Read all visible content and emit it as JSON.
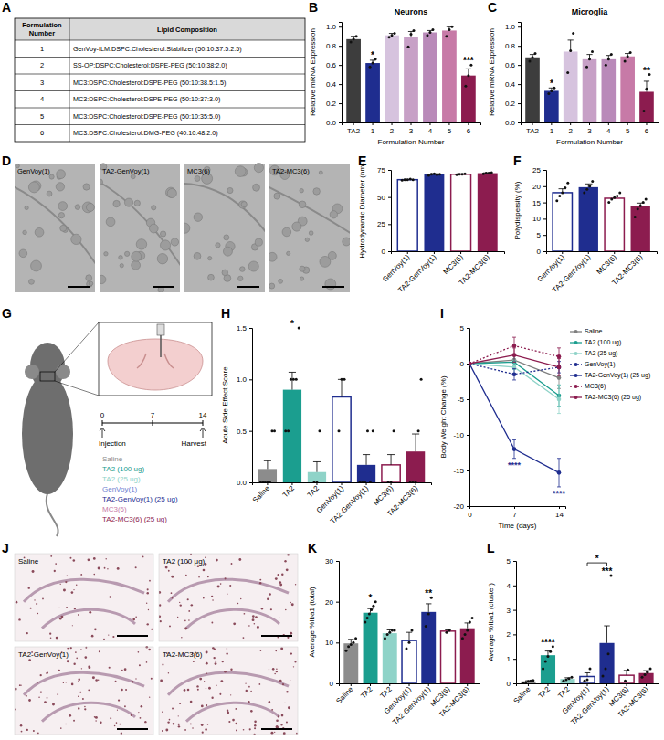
{
  "table": {
    "panel": "A",
    "header": [
      "Formulation Number",
      "Lipid Composition"
    ],
    "rows": [
      [
        "1",
        "GenVoy-ILM:DSPC:Cholesterol:Stabilizer (50:10:37.5:2.5)"
      ],
      [
        "2",
        "SS-OP:DSPC:Cholesterol:DSPE-PEG (50:10:38:2.0)"
      ],
      [
        "3",
        "MC3:DSPC:Cholesterol:DSPE-PEG (50:10:38.5:1.5)"
      ],
      [
        "4",
        "MC3:DSPC:Cholesterol:DSPE-PEG (50:10:37:3.0)"
      ],
      [
        "5",
        "MC3:DSPC:Cholesterol:DSPE-PEG (50:10:35:5.0)"
      ],
      [
        "6",
        "MC3:DSPC:Cholesterol:DMG-PEG (40:10:48:2.0)"
      ]
    ]
  },
  "micrographs": {
    "panel": "D",
    "labels": [
      "GenVoy(1)",
      "TA2-GenVoy(1)",
      "MC3(6)",
      "TA2-MC3(6)"
    ]
  },
  "diagram": {
    "panel": "G",
    "timeline": [
      0,
      7,
      14
    ],
    "events": [
      {
        "day": 0,
        "label": "Injection"
      },
      {
        "day": 14,
        "label": "Harvest"
      }
    ],
    "groups": [
      {
        "name": "Saline",
        "color": "#8c8c8c"
      },
      {
        "name": "TA2 (100 ug)",
        "color": "#1b9e8f"
      },
      {
        "name": "TA2 (25 ug)",
        "color": "#8fd3c8"
      },
      {
        "name": "GenVoy(1)",
        "color": "#7080d0"
      },
      {
        "name": "TA2-GenVoy(1) (25 ug)",
        "color": "#1f2d8f"
      },
      {
        "name": "MC3(6)",
        "color": "#c77aa7"
      },
      {
        "name": "TA2-MC3(6) (25 ug)",
        "color": "#8c1c4f"
      }
    ]
  },
  "histology": {
    "panel": "J",
    "labels": [
      "Saline",
      "TA2 (100 μg)",
      "TA2-GenVoy(1)",
      "TA2-MC3(6)"
    ]
  },
  "chart_data": [
    {
      "type": "bar",
      "panel": "B",
      "title": "Neurons",
      "x_label": "Formulation Number",
      "y_label": "Relative mRNA Expression",
      "categories": [
        "TA2",
        "1",
        "2",
        "3",
        "4",
        "5",
        "6"
      ],
      "values": [
        0.87,
        0.62,
        0.91,
        0.89,
        0.94,
        0.96,
        0.49
      ],
      "errors": [
        0.03,
        0.03,
        0.02,
        0.06,
        0.02,
        0.04,
        0.07
      ],
      "points": [
        [
          0.84,
          0.87,
          0.9
        ],
        [
          0.58,
          0.62,
          0.66
        ],
        [
          0.89,
          0.91,
          0.93
        ],
        [
          0.79,
          0.92,
          0.96
        ],
        [
          0.91,
          0.94,
          0.97
        ],
        [
          0.9,
          0.97,
          1.0
        ],
        [
          0.38,
          0.49,
          0.6
        ]
      ],
      "annotations": [
        null,
        "*",
        null,
        null,
        null,
        null,
        "***"
      ],
      "colors": [
        "#3d3d3d",
        "#1f2d8f",
        "#d6c3de",
        "#c7a0c6",
        "#b98ab9",
        "#c77aa7",
        "#8c1c4f"
      ],
      "ylim": [
        0,
        1.05
      ],
      "yticks": [
        {
          "value": 0,
          "label": "0.0"
        },
        0.2,
        0.4,
        0.6,
        0.8,
        {
          "value": 1,
          "label": "1.0"
        }
      ]
    },
    {
      "type": "bar",
      "panel": "C",
      "title": "Microglia",
      "x_label": "Formulation Number",
      "y_label": "Relative mRNA Expression",
      "categories": [
        "TA2",
        "1",
        "2",
        "3",
        "4",
        "5",
        "6"
      ],
      "values": [
        0.68,
        0.33,
        0.74,
        0.66,
        0.66,
        0.69,
        0.32
      ],
      "errors": [
        0.03,
        0.03,
        0.12,
        0.05,
        0.04,
        0.03,
        0.11
      ],
      "points": [
        [
          0.64,
          0.68,
          0.72
        ],
        [
          0.3,
          0.33,
          0.36
        ],
        [
          0.52,
          0.75,
          0.93
        ],
        [
          0.58,
          0.66,
          0.74
        ],
        [
          0.6,
          0.66,
          0.71
        ],
        [
          0.64,
          0.69,
          0.73
        ],
        [
          0.12,
          0.35,
          0.5
        ]
      ],
      "annotations": [
        null,
        "*",
        null,
        null,
        null,
        null,
        "**"
      ],
      "colors": [
        "#3d3d3d",
        "#1f2d8f",
        "#d6c3de",
        "#c7a0c6",
        "#b98ab9",
        "#c77aa7",
        "#8c1c4f"
      ],
      "ylim": [
        0,
        1.05
      ],
      "yticks": [
        {
          "value": 0,
          "label": "0.0"
        },
        0.2,
        0.4,
        0.6,
        0.8,
        {
          "value": 1,
          "label": "1.0"
        }
      ]
    },
    {
      "type": "bar",
      "panel": "E",
      "y_label": "Hydrodynamic Diameter (nm)",
      "categories": [
        "GenVoy(1)",
        "TA2-GenVoy(1)",
        "MC3(6)",
        "TA2-MC3(6)"
      ],
      "values": [
        66,
        71,
        71,
        72
      ],
      "errors": [
        0.4,
        0.5,
        0.4,
        0.3
      ],
      "points": [
        [
          65.5,
          66,
          66,
          66.5,
          66
        ],
        [
          70,
          71,
          71.5,
          70.5,
          71
        ],
        [
          70.5,
          71,
          71,
          71.5
        ],
        [
          71.5,
          72,
          72,
          72.5
        ]
      ],
      "colors": [
        "#ffffff",
        "#1f2d8f",
        "#ffffff",
        "#8c1c4f"
      ],
      "ylim": [
        0,
        75
      ],
      "yticks": [
        0,
        25,
        50,
        75
      ]
    },
    {
      "type": "bar",
      "panel": "F",
      "y_label": "Polydispersity (%)",
      "categories": [
        "GenVoy(1)",
        "TA2-GenVoy(1)",
        "MC3(6)",
        "TA2-MC3(6)"
      ],
      "values": [
        18,
        19.7,
        16.3,
        13.8
      ],
      "errors": [
        1.2,
        1.0,
        0.7,
        1.0
      ],
      "points": [
        [
          15.5,
          17,
          18,
          19.5,
          21
        ],
        [
          18,
          19,
          20,
          21.5
        ],
        [
          15,
          16,
          16.5,
          17,
          18
        ],
        [
          10.5,
          13,
          14,
          15,
          16
        ]
      ],
      "colors": [
        "#ffffff",
        "#1f2d8f",
        "#ffffff",
        "#8c1c4f"
      ],
      "ylim": [
        0,
        25
      ],
      "yticks": [
        0,
        5,
        10,
        15,
        20,
        25
      ]
    },
    {
      "type": "bar",
      "panel": "H",
      "y_label": "Acute Side Effect Score",
      "categories": [
        "Saline",
        "TA2",
        "TA2",
        "GenVoy(1)",
        "TA2-GenVoy(1)",
        "MC3(6)",
        "TA2-MC3(6)"
      ],
      "values": [
        0.13,
        0.9,
        0.1,
        0.83,
        0.17,
        0.17,
        0.3
      ],
      "errors": [
        0.08,
        0.17,
        0.1,
        0.17,
        0.1,
        0.1,
        0.17
      ],
      "points": [
        [
          0,
          0,
          0,
          0,
          0,
          0.5,
          0.5
        ],
        [
          0.5,
          0.5,
          1,
          1,
          1,
          1.5
        ],
        [
          0,
          0,
          0.5
        ],
        [
          0.5,
          1,
          1
        ],
        [
          0,
          0,
          0,
          0.5,
          0,
          0.5
        ],
        [
          0,
          0,
          0.5
        ],
        [
          0,
          0,
          0,
          0.5,
          1
        ]
      ],
      "annotations": [
        null,
        "*",
        null,
        null,
        null,
        null,
        null
      ],
      "colors": [
        "#8c8c8c",
        "#1b9e8f",
        "#8fd3c8",
        "#ffffff",
        "#1f2d8f",
        "#ffffff",
        "#8c1c4f"
      ],
      "ylim": [
        0,
        1.5
      ],
      "yticks": [
        {
          "value": 0,
          "label": "0.0"
        },
        0.5,
        {
          "value": 1,
          "label": "1.0"
        },
        1.5
      ]
    },
    {
      "type": "line",
      "panel": "I",
      "x_label": "Time (days)",
      "y_label": "Body Weight Change (%)",
      "x": [
        0,
        7,
        14
      ],
      "xlim": [
        0,
        15
      ],
      "xticks": [
        0,
        7,
        14
      ],
      "ylim": [
        -20,
        5
      ],
      "yticks": [
        -20,
        -15,
        -10,
        -5,
        0,
        5
      ],
      "legend": "right",
      "series": [
        {
          "name": "Saline",
          "color": "#7f7f7f",
          "marker": "circle",
          "line_style": "solid",
          "values": [
            0,
            0.5,
            -2
          ],
          "errors": [
            null,
            0.8,
            1.5
          ]
        },
        {
          "name": "TA2 (100 ug)",
          "color": "#1b9e8f",
          "marker": "circle",
          "line_style": "solid",
          "values": [
            0,
            0.2,
            -4.5
          ],
          "errors": [
            null,
            1,
            1.5
          ]
        },
        {
          "name": "TA2 (25 ug)",
          "color": "#8fd3c8",
          "marker": "circle",
          "line_style": "solid",
          "values": [
            0,
            -0.5,
            -5
          ],
          "errors": [
            null,
            1,
            2
          ]
        },
        {
          "name": "GenVoy(1)",
          "color": "#1f2d8f",
          "marker": "circle",
          "line_style": "dotted",
          "values": [
            0,
            -1.5,
            -0.5
          ],
          "errors": [
            null,
            0.8,
            0.8
          ]
        },
        {
          "name": "TA2-GenVoy(1) (25 ug)",
          "color": "#1f2d8f",
          "marker": "circle",
          "line_style": "solid",
          "values": [
            0,
            -12,
            -15.3
          ],
          "errors": [
            null,
            1.3,
            2
          ],
          "annotations": [
            null,
            "****",
            "****"
          ]
        },
        {
          "name": "MC3(6)",
          "color": "#8c1c4f",
          "marker": "circle",
          "line_style": "dotted",
          "values": [
            0,
            2.5,
            1
          ],
          "errors": [
            null,
            1.2,
            1.2
          ]
        },
        {
          "name": "TA2-MC3(6) (25 ug)",
          "color": "#8c1c4f",
          "marker": "circle",
          "line_style": "solid",
          "values": [
            0,
            1.2,
            -0.5
          ],
          "errors": [
            null,
            1,
            1.2
          ]
        }
      ]
    },
    {
      "type": "bar",
      "panel": "K",
      "y_label": "Average %Iba1 (total)",
      "categories": [
        "Saline",
        "TA2",
        "TA2",
        "GenVoy(1)",
        "TA2-GenVoy(1)",
        "MC3(6)",
        "TA2-MC3(6)"
      ],
      "values": [
        9.8,
        17.3,
        12.3,
        10.5,
        17.5,
        12.8,
        13.5
      ],
      "errors": [
        1,
        1,
        0.8,
        2,
        2,
        0.3,
        1.3
      ],
      "points": [
        [
          8,
          9,
          9.5,
          10,
          11
        ],
        [
          15,
          16,
          17,
          18,
          19,
          20
        ],
        [
          11,
          12,
          12.5,
          13,
          13
        ],
        [
          8.5,
          10,
          13
        ],
        [
          14,
          17,
          21
        ],
        [
          12.5,
          13
        ],
        [
          11,
          12,
          13,
          15,
          16
        ]
      ],
      "annotations": [
        null,
        "*",
        null,
        null,
        "**",
        null,
        null
      ],
      "colors": [
        "#8c8c8c",
        "#1b9e8f",
        "#8fd3c8",
        "#ffffff",
        "#1f2d8f",
        "#ffffff",
        "#8c1c4f"
      ],
      "ylim": [
        0,
        30
      ],
      "yticks": [
        0,
        10,
        20,
        30
      ]
    },
    {
      "type": "bar",
      "panel": "L",
      "y_label": "Average %Iba1 (cluster)",
      "categories": [
        "Saline",
        "TA2",
        "TA2",
        "GenVoy(1)",
        "TA2-GenVoy(1)",
        "MC3(6)",
        "TA2-MC3(6)"
      ],
      "values": [
        0.08,
        1.15,
        0.18,
        0.28,
        1.65,
        0.33,
        0.42
      ],
      "errors": [
        0.03,
        0.17,
        0.05,
        0.15,
        0.7,
        0.2,
        0.1
      ],
      "points": [
        [
          0.03,
          0.05,
          0.08,
          0.1,
          0.12
        ],
        [
          0.6,
          0.9,
          1.1,
          1.3,
          1.5
        ],
        [
          0.1,
          0.15,
          0.2,
          0.25
        ],
        [
          0.1,
          0.15,
          0.6
        ],
        [
          0.3,
          0.6,
          1.2,
          4.4
        ],
        [
          0.1,
          0.55
        ],
        [
          0.25,
          0.35,
          0.45,
          0.6
        ]
      ],
      "annotations": [
        null,
        "****",
        null,
        null,
        "***",
        null,
        null
      ],
      "brackets": [
        {
          "from": 3,
          "to": 4,
          "text": "*"
        }
      ],
      "colors": [
        "#8c8c8c",
        "#1b9e8f",
        "#8fd3c8",
        "#ffffff",
        "#1f2d8f",
        "#ffffff",
        "#8c1c4f"
      ],
      "ylim": [
        0,
        5
      ],
      "yticks": [
        0,
        1,
        2,
        3,
        4,
        5
      ]
    }
  ]
}
